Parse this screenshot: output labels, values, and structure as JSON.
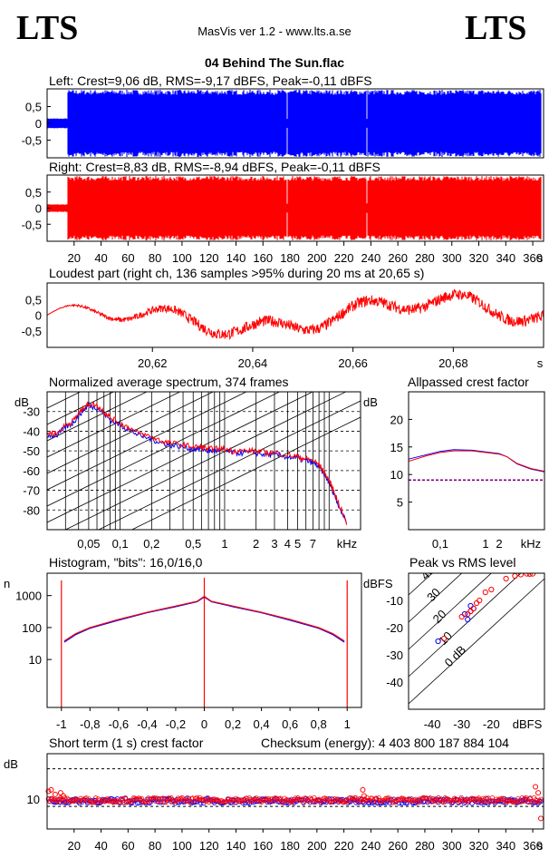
{
  "header": {
    "logo_left": "LTS",
    "logo_right": "LTS",
    "app_title": "MasVis ver 1.2 - www.lts.a.se",
    "file_title": "04 Behind The Sun.flac"
  },
  "colors": {
    "left": "#0000ff",
    "right": "#ff0000",
    "guide": "#800080"
  },
  "chart_data": [
    {
      "id": "left_waveform",
      "type": "area",
      "title": "Left: Crest=9,06 dB, RMS=-9,17 dBFS, Peak=-0,11 dBFS",
      "yticks": [
        "0,5",
        "0",
        "-0,5"
      ],
      "ylim": [
        -1,
        1
      ],
      "xlim": [
        0,
        368
      ],
      "segments": [
        {
          "from": 0,
          "to": 15,
          "amplitude": 0.15
        },
        {
          "from": 15,
          "to": 366,
          "amplitude": 1.0
        }
      ],
      "dropouts": [
        178,
        237
      ]
    },
    {
      "id": "right_waveform",
      "type": "area",
      "title": "Right: Crest=8,83 dB, RMS=-8,94 dBFS, Peak=-0,11 dBFS",
      "yticks": [
        "0,5",
        "0",
        "-0,5"
      ],
      "ylim": [
        -1,
        1
      ],
      "xlim": [
        0,
        368
      ],
      "xticks": [
        "20",
        "40",
        "60",
        "80",
        "100",
        "120",
        "140",
        "160",
        "180",
        "200",
        "220",
        "240",
        "260",
        "280",
        "300",
        "320",
        "340",
        "360",
        "s"
      ],
      "segments": [
        {
          "from": 0,
          "to": 15,
          "amplitude": 0.12
        },
        {
          "from": 15,
          "to": 366,
          "amplitude": 1.0
        }
      ],
      "dropouts": [
        178,
        237
      ]
    },
    {
      "id": "loudest_part",
      "type": "line",
      "title": "Loudest part (right ch, 136 samples >95% during 20 ms at 20,65 s)",
      "yticks": [
        "0,5",
        "0",
        "-0,5"
      ],
      "xticks": [
        "20,62",
        "20,64",
        "20,66",
        "20,68",
        "s"
      ],
      "xlim": [
        20.599,
        20.698
      ],
      "ylim": [
        -0.8,
        0.8
      ]
    },
    {
      "id": "spectrum",
      "type": "line",
      "title": "Normalized average spectrum, 374 frames",
      "ylabel": "dB",
      "yticks": [
        "-30",
        "-40",
        "-50",
        "-60",
        "-70",
        "-80"
      ],
      "xticks": [
        "0,05",
        "0,1",
        "0,2",
        "0,5",
        "1",
        "2",
        "3",
        "4",
        "5",
        "7",
        "kHz"
      ],
      "series": [
        {
          "color": "blue",
          "x": [
            0.02,
            0.025,
            0.03,
            0.035,
            0.04,
            0.045,
            0.05,
            0.06,
            0.07,
            0.08,
            0.1,
            0.12,
            0.15,
            0.2,
            0.25,
            0.3,
            0.4,
            0.5,
            0.6,
            0.7,
            0.8,
            1,
            1.2,
            1.5,
            2,
            2.5,
            3,
            4,
            5,
            6,
            7,
            8,
            9,
            10,
            11,
            12,
            15
          ],
          "y": [
            -42,
            -42,
            -38,
            -36,
            -32,
            -29,
            -27,
            -28,
            -31,
            -34,
            -37,
            -39,
            -42,
            -44,
            -46,
            -47,
            -48,
            -49,
            -49,
            -50,
            -50,
            -50,
            -51,
            -51,
            -51,
            -52,
            -52,
            -53,
            -54,
            -55,
            -56,
            -58,
            -62,
            -66,
            -71,
            -76,
            -88
          ]
        },
        {
          "color": "red",
          "x": [
            0.02,
            0.025,
            0.03,
            0.035,
            0.04,
            0.045,
            0.05,
            0.06,
            0.07,
            0.08,
            0.1,
            0.12,
            0.15,
            0.2,
            0.25,
            0.3,
            0.4,
            0.5,
            0.6,
            0.7,
            0.8,
            1,
            1.2,
            1.5,
            2,
            2.5,
            3,
            4,
            5,
            6,
            7,
            8,
            9,
            10,
            11,
            12,
            15
          ],
          "y": [
            -41,
            -41,
            -37,
            -35,
            -31,
            -28,
            -26,
            -27,
            -30,
            -33,
            -36,
            -38,
            -41,
            -43,
            -45,
            -46,
            -47,
            -48,
            -48,
            -49,
            -49,
            -49,
            -50,
            -50,
            -50,
            -51,
            -51,
            -52,
            -53,
            -54,
            -55,
            -57,
            -61,
            -65,
            -70,
            -75,
            -88
          ]
        }
      ]
    },
    {
      "id": "allpassed_crest",
      "type": "line",
      "title": "Allpassed crest factor",
      "ylabel": "dB",
      "yticks": [
        "20",
        "15",
        "10",
        "5"
      ],
      "xticks": [
        "0,1",
        "1",
        "2",
        "kHz"
      ],
      "ylim": [
        0,
        25
      ],
      "series": [
        {
          "color": "blue",
          "x": [
            0.02,
            0.05,
            0.1,
            0.2,
            0.5,
            1,
            2,
            3,
            5,
            10,
            20
          ],
          "y": [
            12.8,
            13.6,
            14.2,
            14.5,
            14.4,
            14.1,
            13.8,
            13.2,
            11.9,
            11.0,
            10.5
          ]
        },
        {
          "color": "red",
          "x": [
            0.02,
            0.05,
            0.1,
            0.2,
            0.5,
            1,
            2,
            3,
            5,
            10,
            20
          ],
          "y": [
            12.4,
            13.4,
            14.0,
            14.3,
            14.3,
            14.0,
            13.7,
            13.2,
            12.0,
            11.1,
            10.6
          ]
        }
      ],
      "reference": 9
    },
    {
      "id": "histogram",
      "type": "line",
      "title": "Histogram, \"bits\": 16,0/16,0",
      "ylabel": "n",
      "yticks": [
        "1000",
        "100",
        "10"
      ],
      "xticks": [
        "-1",
        "-0,8",
        "-0,6",
        "-0,4",
        "-0,2",
        "0",
        "0,2",
        "0,4",
        "0,6",
        "0,8",
        "1"
      ],
      "series": [
        {
          "color": "blue",
          "x": [
            -0.98,
            -0.9,
            -0.8,
            -0.6,
            -0.4,
            -0.2,
            -0.05,
            0,
            0.05,
            0.2,
            0.4,
            0.6,
            0.8,
            0.9,
            0.98
          ],
          "y": [
            35,
            60,
            95,
            170,
            290,
            450,
            640,
            900,
            640,
            450,
            290,
            170,
            95,
            60,
            35
          ]
        },
        {
          "color": "red",
          "x": [
            -0.98,
            -0.9,
            -0.8,
            -0.6,
            -0.4,
            -0.2,
            -0.05,
            0,
            0.05,
            0.2,
            0.4,
            0.6,
            0.8,
            0.9,
            0.98
          ],
          "y": [
            38,
            64,
            100,
            180,
            300,
            470,
            660,
            950,
            660,
            470,
            300,
            180,
            100,
            64,
            38
          ]
        }
      ],
      "spikes_x": [
        -1,
        0,
        1
      ]
    },
    {
      "id": "peak_vs_rms",
      "type": "scatter",
      "title": "Peak vs RMS level",
      "ylabel": "dBFS",
      "xlabel": "dBFS",
      "yticks": [
        "-10",
        "-20",
        "-30",
        "-40"
      ],
      "xticks": [
        "-40",
        "-30",
        "-20"
      ],
      "diag_labels": [
        "40",
        "30",
        "20",
        "10",
        "0 dB"
      ],
      "xlim": [
        -48,
        -2
      ],
      "ylim": [
        -50,
        0
      ],
      "series": [
        {
          "color": "blue",
          "points": [
            [
              -29,
              -15
            ],
            [
              -27,
              -14
            ],
            [
              -26,
              -13
            ],
            [
              -28,
              -17
            ],
            [
              -38,
              -25
            ],
            [
              -27,
              -12
            ]
          ]
        },
        {
          "color": "red",
          "points": [
            [
              -30,
              -16
            ],
            [
              -28,
              -15
            ],
            [
              -27,
              -14
            ],
            [
              -26,
              -13
            ],
            [
              -25,
              -11
            ],
            [
              -24,
              -10
            ],
            [
              -22,
              -7
            ],
            [
              -20,
              -6
            ],
            [
              -15,
              -2
            ],
            [
              -12,
              -1
            ],
            [
              -10,
              -0.5
            ],
            [
              -7,
              -0.3
            ],
            [
              -8,
              -0.2
            ],
            [
              -6,
              -0.2
            ],
            [
              -36,
              -24
            ]
          ]
        }
      ]
    },
    {
      "id": "short_term_crest",
      "type": "scatter",
      "title": "Short term (1 s) crest factor",
      "checksum": "Checksum (energy):  4 403 800 187 884 104",
      "ylabel": "dB",
      "yticks": [
        "10"
      ],
      "xticks": [
        "20",
        "40",
        "60",
        "80",
        "100",
        "120",
        "140",
        "160",
        "180",
        "200",
        "220",
        "240",
        "260",
        "280",
        "300",
        "320",
        "340",
        "360",
        "s"
      ],
      "xlim": [
        0,
        368
      ],
      "ylim": [
        0,
        25
      ],
      "series": [
        {
          "color": "blue",
          "mean": 9.3
        },
        {
          "color": "red",
          "mean": 9.6
        }
      ],
      "outliers": [
        [
          1,
          12.5
        ],
        [
          3,
          13
        ],
        [
          6,
          11.5
        ],
        [
          10,
          12
        ],
        [
          12,
          11
        ],
        [
          234,
          13
        ],
        [
          235,
          11
        ],
        [
          362,
          14
        ],
        [
          364,
          12
        ],
        [
          366,
          3.5
        ]
      ]
    }
  ]
}
